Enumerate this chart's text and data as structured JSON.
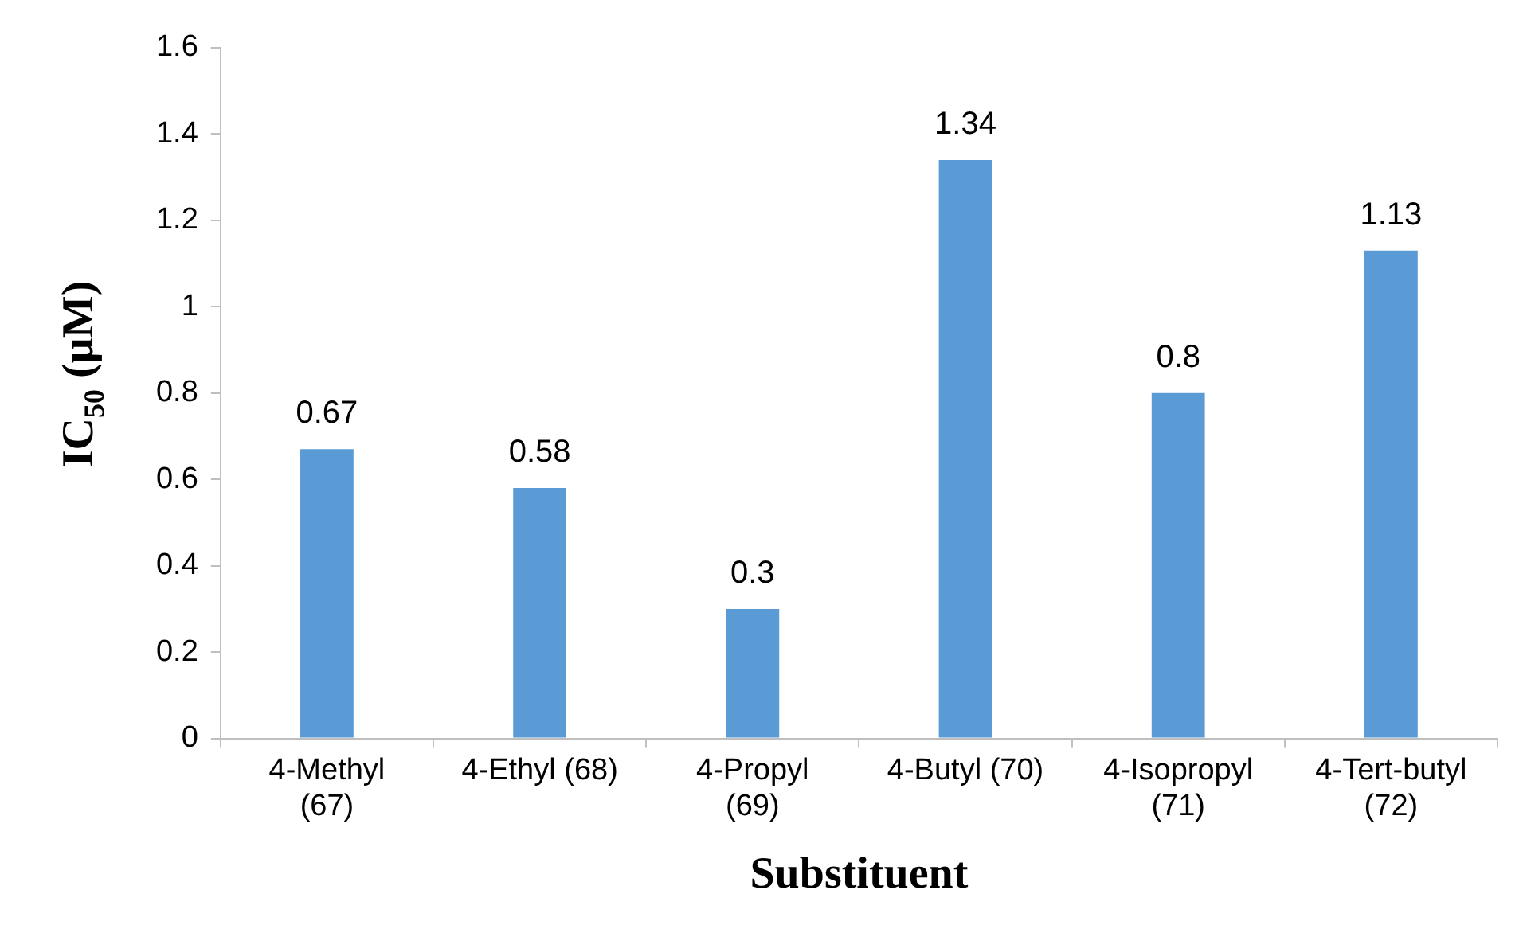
{
  "chart_data": {
    "type": "bar",
    "xlabel": "Substituent",
    "ylabel": "IC$_{50}$ (µM)",
    "categories": [
      "4-Methyl\n(67)",
      "4-Ethyl (68)",
      "4-Propyl\n(69)",
      "4-Butyl (70)",
      "4-Isopropyl\n(71)",
      "4-Tert-butyl\n(72)"
    ],
    "values": [
      0.67,
      0.58,
      0.3,
      1.34,
      0.8,
      1.13
    ],
    "color": "#5b9bd5",
    "ylim": [
      0,
      1.6
    ],
    "yticks": [
      0,
      0.2,
      0.4,
      0.6,
      0.8,
      1,
      1.2,
      1.4,
      1.6
    ],
    "grid": false,
    "legend": false,
    "data_labels": true
  }
}
